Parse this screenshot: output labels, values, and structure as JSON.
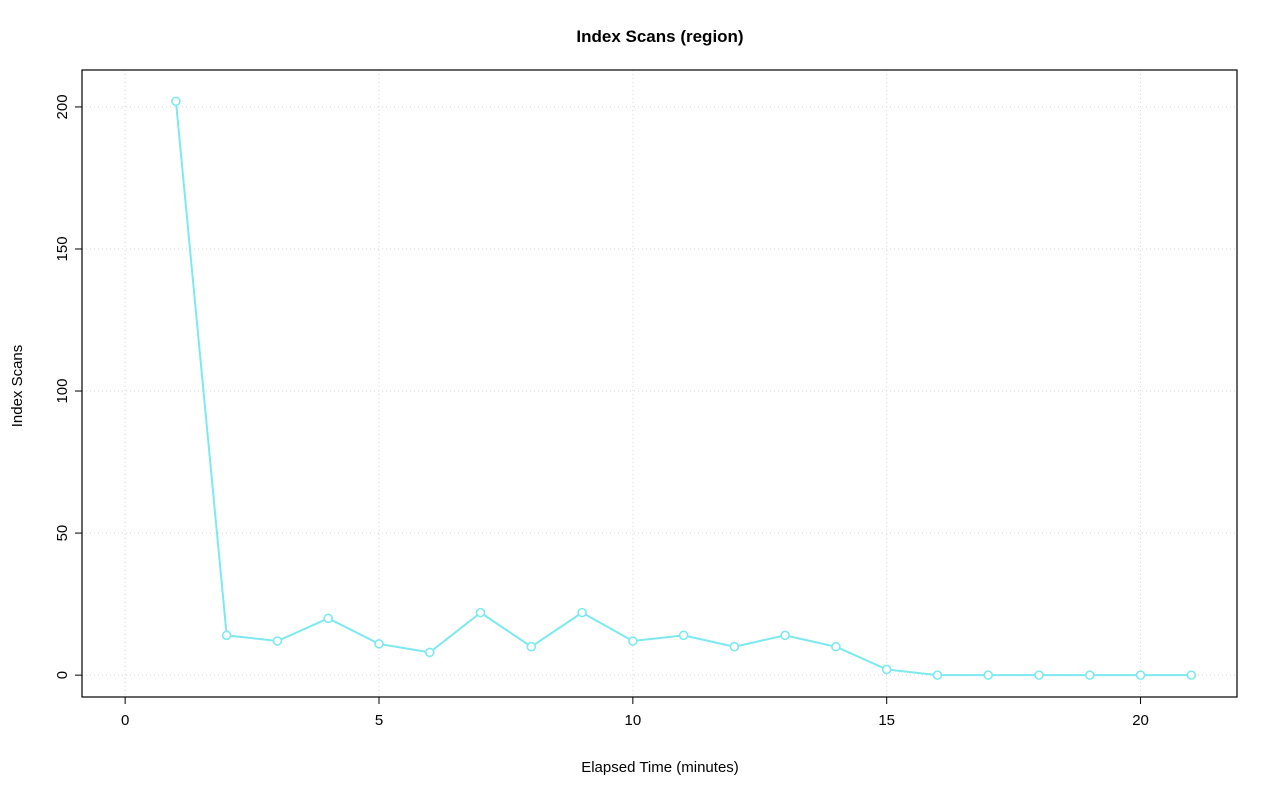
{
  "chart_data": {
    "type": "line",
    "title": "Index Scans (region)",
    "xlabel": "Elapsed Time (minutes)",
    "ylabel": "Index Scans",
    "x": [
      1,
      2,
      3,
      4,
      5,
      6,
      7,
      8,
      9,
      10,
      11,
      12,
      13,
      14,
      15,
      16,
      17,
      18,
      19,
      20,
      21
    ],
    "values": [
      202,
      14,
      12,
      20,
      11,
      8,
      22,
      10,
      22,
      12,
      14,
      10,
      14,
      10,
      2,
      0,
      0,
      0,
      0,
      0,
      0
    ],
    "xlim": [
      -0.85,
      21.9
    ],
    "ylim": [
      -7.7,
      213
    ],
    "xticks": [
      0,
      5,
      10,
      15,
      20
    ],
    "yticks": [
      0,
      50,
      100,
      150,
      200
    ],
    "grid": true,
    "legend": "none",
    "line_color": "#7de9ef",
    "marker": "open-circle",
    "marker_fill": "#ffffff",
    "grid_color": "#d8d8d8",
    "box_color": "#000000",
    "tick_font_px": 15
  }
}
